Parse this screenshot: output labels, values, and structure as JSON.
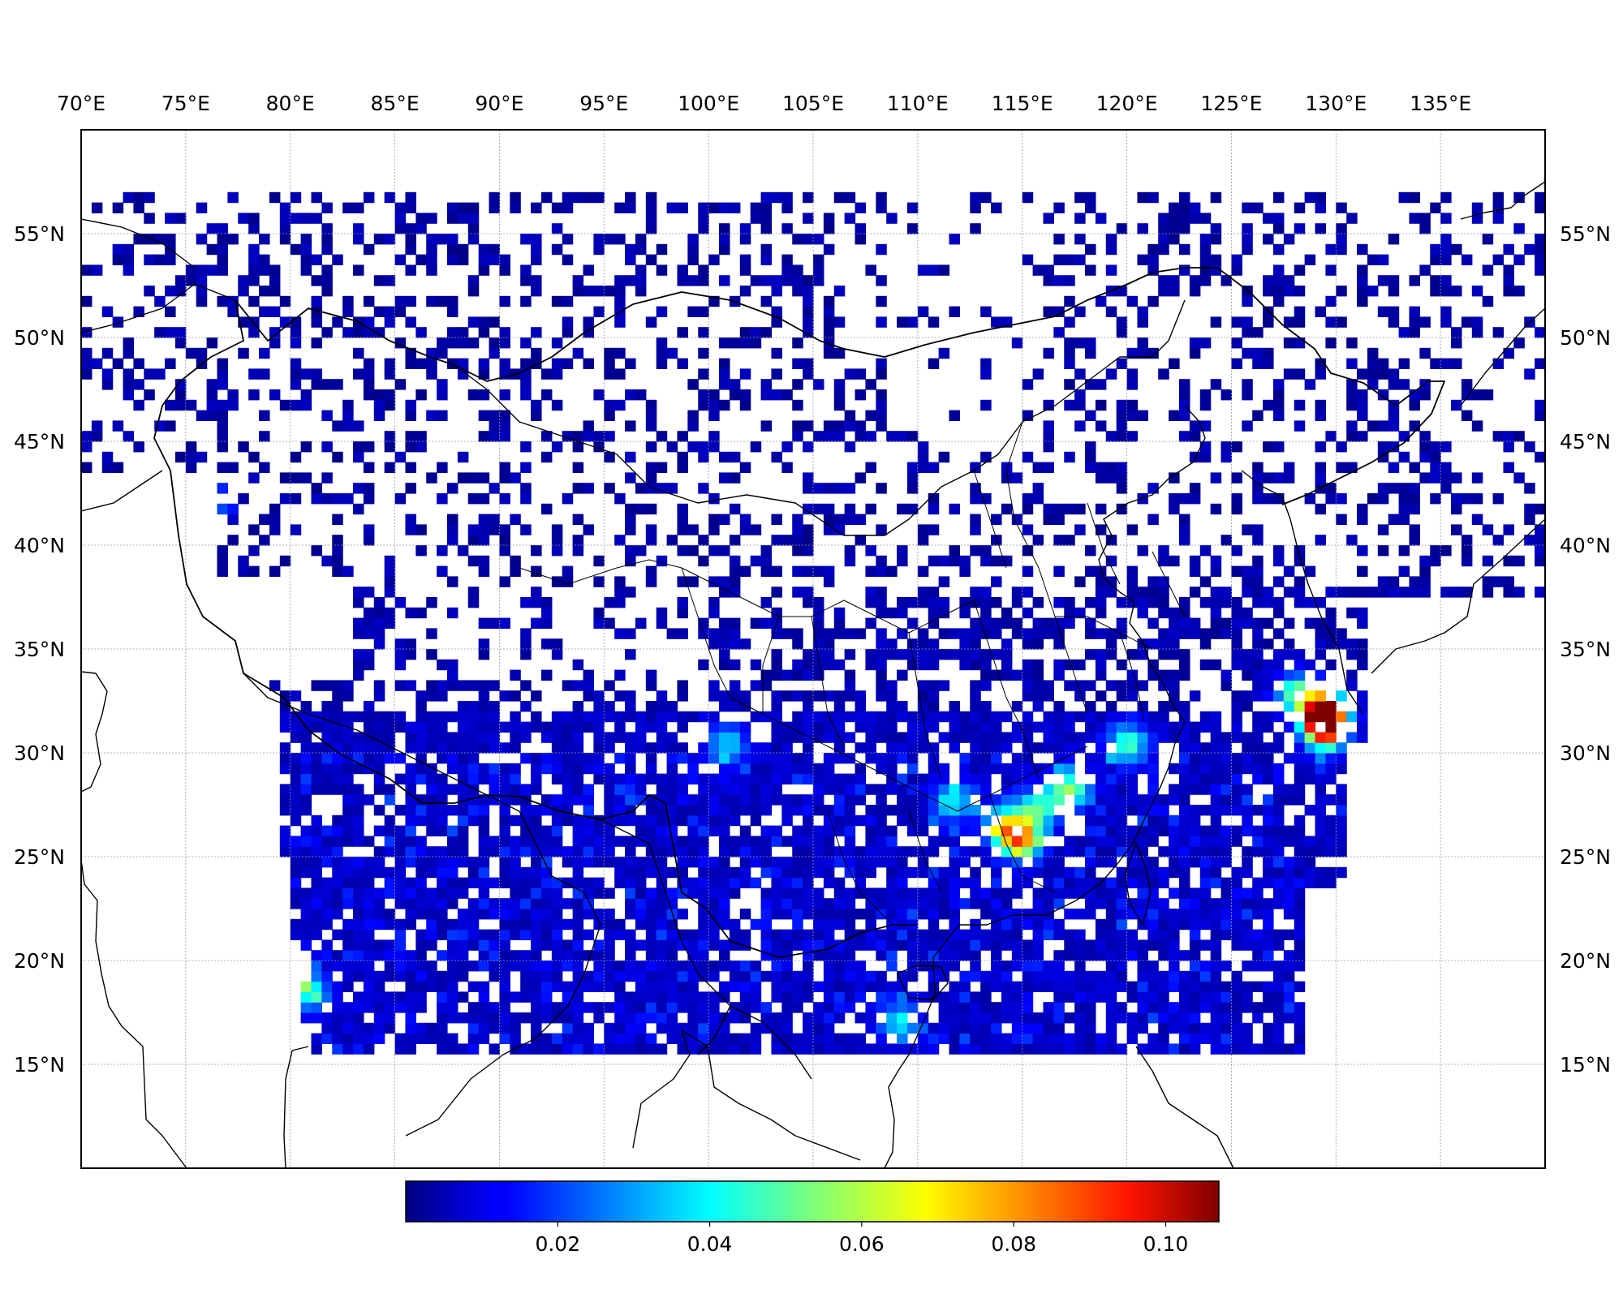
{
  "chart_data": {
    "type": "heatmap",
    "title": "",
    "x_axis": {
      "range": [
        70,
        140
      ],
      "ticks": [
        70,
        75,
        80,
        85,
        90,
        95,
        100,
        105,
        110,
        115,
        120,
        125,
        130,
        135
      ],
      "tick_labels": [
        "70°E",
        "75°E",
        "80°E",
        "85°E",
        "90°E",
        "95°E",
        "100°E",
        "105°E",
        "110°E",
        "115°E",
        "120°E",
        "125°E",
        "130°E",
        "135°E"
      ],
      "position": "top"
    },
    "y_axis": {
      "range": [
        10,
        60
      ],
      "ticks": [
        15,
        20,
        25,
        30,
        35,
        40,
        45,
        50,
        55
      ],
      "tick_labels": [
        "15°N",
        "20°N",
        "25°N",
        "30°N",
        "35°N",
        "40°N",
        "45°N",
        "50°N",
        "55°N"
      ],
      "position": "left and right"
    },
    "grid": true,
    "colormap": "jet",
    "colorbar": {
      "range": [
        0.0,
        0.107
      ],
      "ticks": [
        0.02,
        0.04,
        0.06,
        0.08,
        0.1
      ],
      "tick_labels": [
        "0.02",
        "0.04",
        "0.06",
        "0.08",
        "0.10"
      ],
      "orientation": "horizontal",
      "placement": "bottom"
    },
    "data_extent": {
      "lon": [
        77,
        128
      ],
      "lat": [
        15.5,
        57
      ]
    },
    "hotspots": [
      {
        "lon": 129.2,
        "lat": 31.8,
        "value": 0.09
      },
      {
        "lon": 114.7,
        "lat": 25.6,
        "value": 0.07
      },
      {
        "lon": 129.1,
        "lat": 31.2,
        "value": 0.065
      },
      {
        "lon": 117.0,
        "lat": 28.0,
        "value": 0.05
      },
      {
        "lon": 127.8,
        "lat": 32.6,
        "value": 0.048
      },
      {
        "lon": 80.6,
        "lat": 18.3,
        "value": 0.04
      },
      {
        "lon": 113.9,
        "lat": 26.3,
        "value": 0.045
      },
      {
        "lon": 115.5,
        "lat": 27.1,
        "value": 0.04
      },
      {
        "lon": 129.4,
        "lat": 30.7,
        "value": 0.04
      },
      {
        "lon": 119.8,
        "lat": 30.2,
        "value": 0.04
      },
      {
        "lon": 108.9,
        "lat": 16.8,
        "value": 0.035
      },
      {
        "lon": 100.6,
        "lat": 30.2,
        "value": 0.03
      },
      {
        "lon": 76.0,
        "lat": 41.9,
        "value": 0.03
      },
      {
        "lon": 111.5,
        "lat": 27.4,
        "value": 0.032
      }
    ]
  }
}
